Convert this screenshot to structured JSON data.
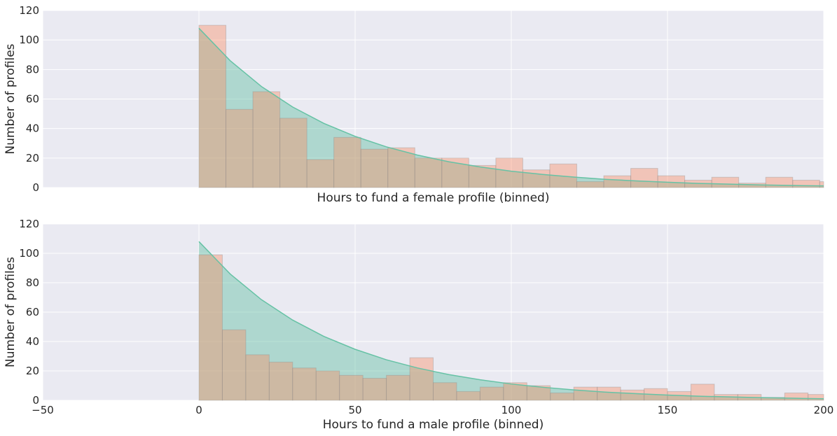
{
  "chart_data": [
    {
      "type": "bar",
      "xlabel": "Hours to fund a female profile (binned)",
      "ylabel": "Number of profiles",
      "xlim": [
        -50,
        200
      ],
      "ylim": [
        0,
        120
      ],
      "xticks_shown": false,
      "yticks": [
        "0",
        "20",
        "40",
        "60",
        "80",
        "100",
        "120"
      ],
      "grid": true,
      "colors": {
        "background": "#eaeaf2",
        "grid": "#ffffff",
        "curve": "#66c2a5",
        "bars": "#fc8d62",
        "text": "#262626"
      },
      "series": [
        {
          "kind": "histogram",
          "bin_width": 8.64,
          "values": [
            110,
            53,
            65,
            47,
            19,
            34,
            26,
            27,
            20,
            20,
            15,
            20,
            12,
            16,
            4,
            8,
            13,
            8,
            5,
            7,
            3,
            7,
            5,
            4
          ]
        },
        {
          "kind": "fitted-curve",
          "x": [
            0,
            10,
            20,
            30,
            40,
            50,
            60,
            70,
            80,
            90,
            100,
            110,
            120,
            130,
            140,
            150,
            160,
            170,
            180,
            190,
            200
          ],
          "y": [
            108,
            86,
            68.5,
            54.6,
            43.5,
            34.7,
            27.6,
            22,
            17.5,
            14,
            11.1,
            8.9,
            7.1,
            5.6,
            4.5,
            3.6,
            2.8,
            2.3,
            1.8,
            1.4,
            1.1
          ]
        }
      ]
    },
    {
      "type": "bar",
      "xlabel": "Hours to fund a male profile (binned)",
      "ylabel": "Number of profiles",
      "xlim": [
        -50,
        200
      ],
      "ylim": [
        0,
        120
      ],
      "xticks": [
        "−50",
        "0",
        "50",
        "100",
        "150",
        "200"
      ],
      "yticks": [
        "0",
        "20",
        "40",
        "60",
        "80",
        "100",
        "120"
      ],
      "grid": true,
      "colors": {
        "background": "#eaeaf2",
        "grid": "#ffffff",
        "curve": "#66c2a5",
        "bars": "#fc8d62",
        "text": "#262626"
      },
      "series": [
        {
          "kind": "histogram",
          "bin_width": 7.5,
          "values": [
            99,
            48,
            31,
            26,
            22,
            20,
            17,
            15,
            17,
            29,
            12,
            6,
            9,
            12,
            10,
            5,
            9,
            9,
            7,
            8,
            6,
            11,
            4,
            4,
            2,
            5,
            4
          ]
        },
        {
          "kind": "fitted-curve",
          "x": [
            0,
            10,
            20,
            30,
            40,
            50,
            60,
            70,
            80,
            90,
            100,
            110,
            120,
            130,
            140,
            150,
            160,
            170,
            180,
            190,
            200
          ],
          "y": [
            108,
            86,
            68.5,
            54.6,
            43.5,
            34.7,
            27.6,
            22,
            17.5,
            14,
            11.1,
            8.9,
            7.1,
            5.6,
            4.5,
            3.6,
            2.8,
            2.3,
            1.8,
            1.4,
            1.1
          ]
        }
      ]
    }
  ]
}
